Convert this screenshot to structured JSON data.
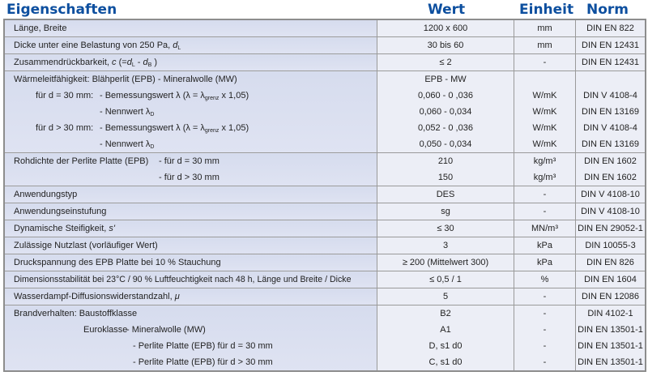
{
  "header": {
    "col1": "Eigenschaften",
    "col2": "Wert",
    "col3": "Einheit",
    "col4": "Norm"
  },
  "colors": {
    "header_text": "#0d4f9f",
    "label_bg": "#d8deef",
    "value_bg": "#eceef6",
    "border": "#9a9a9a"
  },
  "rows": [
    {
      "label": "Länge, Breite",
      "wert": "1200 x 600",
      "einheit": "mm",
      "norm": "DIN EN 822"
    },
    {
      "label": "Dicke unter eine Belastung von 250 Pa, ",
      "sym": "d",
      "sub": "L",
      "wert": "30 bis 60",
      "einheit": "mm",
      "norm": "DIN EN 12431"
    },
    {
      "label": "Zusammendrückbarkeit, ",
      "sym": "c",
      "mid": " (=",
      "sym2": "d",
      "sub2": "L",
      "mid2": " - ",
      "sym3": "d",
      "sub3": "B",
      "end": " )",
      "wert": "≤ 2",
      "einheit": "-",
      "norm": "DIN EN 12431"
    },
    {
      "label": "Wärmeleitfähigkeit: Blähperlit (EPB) - Mineralwolle (MW)",
      "wert": "EPB - MW",
      "lines": [
        {
          "prefix": "für d = 30 mm:",
          "text": "- Bemessungswert λ (λ = λ",
          "sub": "grenz",
          "end": " x 1,05)",
          "wert": "0,060 - 0 ,036",
          "einheit": "W/mK",
          "norm": "DIN V 4108-4"
        },
        {
          "text": "- Nennwert λ",
          "sub": "D",
          "wert": "0,060 - 0,034",
          "einheit": "W/mK",
          "norm": "DIN EN 13169"
        },
        {
          "prefix": "für d > 30 mm:",
          "text": "- Bemessungswert λ (λ = λ",
          "sub": "grenz",
          "end": " x 1,05)",
          "wert": "0,052 - 0 ,036",
          "einheit": "W/mK",
          "norm": "DIN V 4108-4"
        },
        {
          "text": "- Nennwert λ",
          "sub": "D",
          "wert": "0,050 - 0,034",
          "einheit": "W/mK",
          "norm": "DIN EN 13169"
        }
      ]
    },
    {
      "label": "Rohdichte der Perlite Platte (EPB)",
      "lines": [
        {
          "text": "- für d = 30 mm",
          "wert": "210",
          "einheit": "kg/m³",
          "norm": "DIN EN 1602"
        },
        {
          "text": "- für d > 30 mm",
          "wert": "150",
          "einheit": "kg/m³",
          "norm": "DIN EN 1602"
        }
      ]
    },
    {
      "label": "Anwendungstyp",
      "wert": "DES",
      "einheit": "-",
      "norm": "DIN V 4108-10"
    },
    {
      "label": "Anwendungseinstufung",
      "wert": "sg",
      "einheit": "-",
      "norm": "DIN V 4108-10"
    },
    {
      "label": "Dynamische Steifigkeit, ",
      "sym": "s'",
      "wert": "≤ 30",
      "einheit": "MN/m³",
      "norm": "DIN EN 29052-1"
    },
    {
      "label": "Zulässige Nutzlast (vorläufiger Wert)",
      "wert": "3",
      "einheit": "kPa",
      "norm": "DIN 10055-3"
    },
    {
      "label": "Druckspannung des EPB Platte bei 10 % Stauchung",
      "wert": "≥ 200 (Mittelwert 300)",
      "einheit": "kPa",
      "norm": "DIN EN 826"
    },
    {
      "label": "Dimensionsstabilität bei 23°C / 90 % Luftfeuchtigkeit nach 48 h, Länge und Breite / Dicke",
      "wert": "≤ 0,5 / 1",
      "einheit": "%",
      "norm": "DIN EN 1604"
    },
    {
      "label": "Wasserdampf-Diffusionswiderstandzahl, ",
      "sym": "μ",
      "wert": "5",
      "einheit": "-",
      "norm": "DIN EN 12086"
    },
    {
      "label": "Brandverhalten: Baustoffklasse",
      "wert": "B2",
      "einheit": "-",
      "norm": "DIN 4102-1",
      "lines": [
        {
          "prefix": "Euroklasse",
          "text": "- Mineralwolle (MW)",
          "wert": "A1",
          "einheit": "-",
          "norm": "DIN EN 13501-1"
        },
        {
          "text": "- Perlite Platte (EPB) für d = 30 mm",
          "wert": "D, s1 d0",
          "einheit": "-",
          "norm": "DIN EN 13501-1"
        },
        {
          "text": "- Perlite Platte (EPB) für d > 30 mm",
          "wert": "C, s1 d0",
          "einheit": "-",
          "norm": "DIN EN 13501-1"
        }
      ]
    }
  ]
}
